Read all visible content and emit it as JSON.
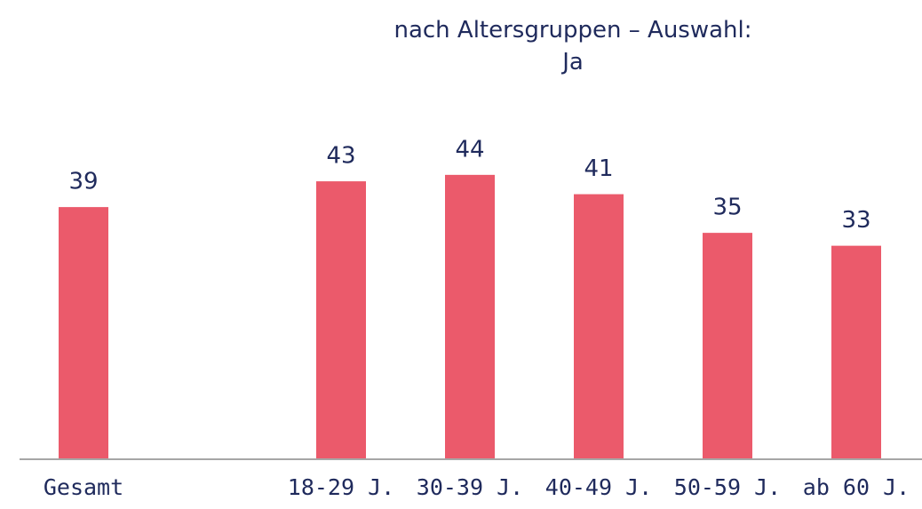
{
  "chart_data": {
    "type": "bar",
    "title": "nach Altersgruppen – Auswahl: Ja",
    "categories": [
      "Gesamt",
      null,
      "18-29 J.",
      "30-39 J.",
      "40-49 J.",
      "50-59 J.",
      "ab 60 J."
    ],
    "values": [
      39,
      null,
      43,
      44,
      41,
      35,
      33
    ],
    "color": "#eb5a6b",
    "ylim": [
      0,
      71
    ]
  }
}
